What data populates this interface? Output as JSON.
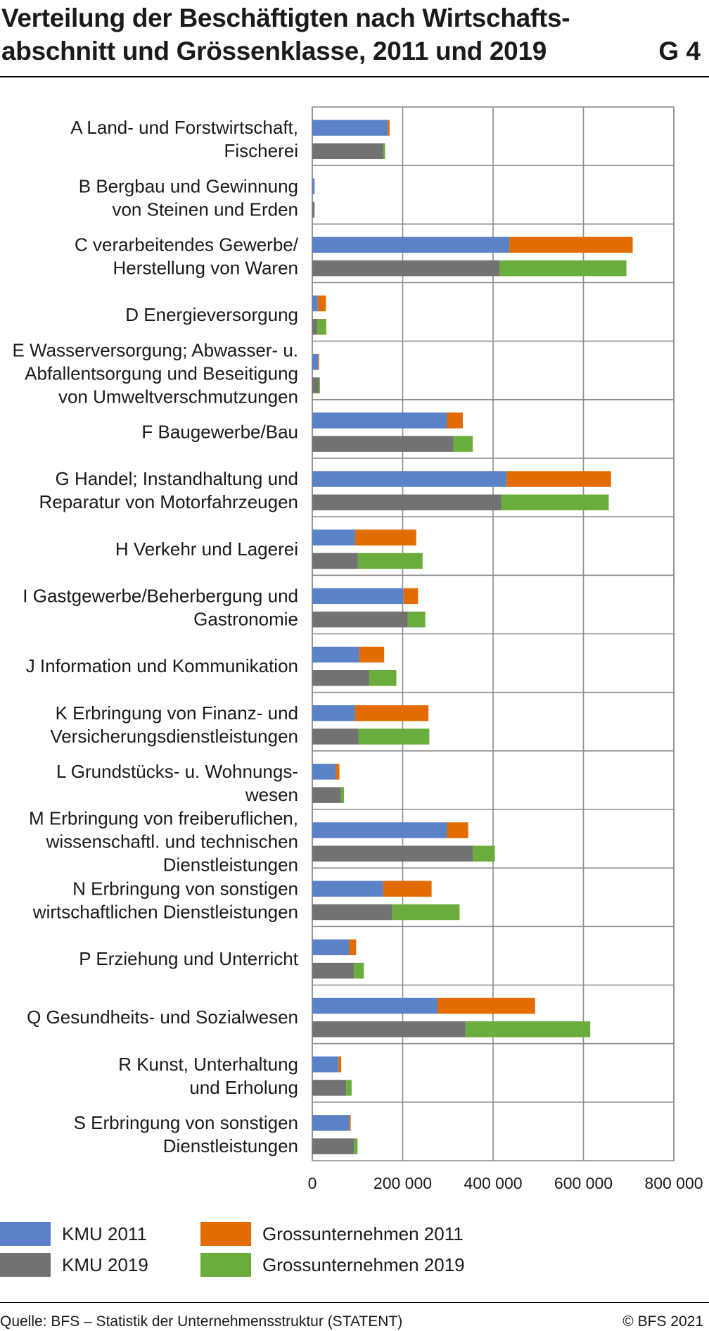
{
  "title_lines": [
    "Verteilung der Beschäftigten nach Wirtschafts-",
    "abschnitt und Grössenklasse, 2011 und 2019"
  ],
  "figure_number": "G 4",
  "colors": {
    "kmu_2011": "#5b81c6",
    "gross_2011": "#e26c00",
    "kmu_2019": "#727272",
    "gross_2019": "#6aad3c"
  },
  "legend": [
    {
      "label": "KMU 2011",
      "color": "#5b81c6"
    },
    {
      "label": "Grossunternehmen 2011",
      "color": "#e26c00"
    },
    {
      "label": "KMU 2019",
      "color": "#727272"
    },
    {
      "label": "Grossunternehmen 2019",
      "color": "#6aad3c"
    }
  ],
  "chart_data": {
    "type": "bar",
    "orientation": "horizontal",
    "stacked": true,
    "xlim": [
      0,
      800000
    ],
    "xticks": [
      0,
      200000,
      400000,
      600000,
      800000
    ],
    "xtick_labels": [
      "0",
      "200 000",
      "400 000",
      "600 000",
      "800 000"
    ],
    "grid": true,
    "legend_position": "bottom",
    "categories": [
      {
        "label_lines": [
          "A Land- und Forstwirtschaft,",
          "Fischerei"
        ],
        "kmu_2011": 167000,
        "gross_2011": 4000,
        "kmu_2019": 157000,
        "gross_2019": 4000
      },
      {
        "label_lines": [
          "B Bergbau und Gewinnung",
          "von Steinen und Erden"
        ],
        "kmu_2011": 5000,
        "gross_2011": 0,
        "kmu_2019": 5000,
        "gross_2019": 0
      },
      {
        "label_lines": [
          "C verarbeitendes Gewerbe/",
          "Herstellung von Waren"
        ],
        "kmu_2011": 436000,
        "gross_2011": 273000,
        "kmu_2019": 415000,
        "gross_2019": 280000
      },
      {
        "label_lines": [
          "D Energieversorgung"
        ],
        "kmu_2011": 12000,
        "gross_2011": 18000,
        "kmu_2019": 11000,
        "gross_2019": 20000
      },
      {
        "label_lines": [
          "E Wasserversorgung; Abwasser- u.",
          "Abfallentsorgung und Beseitigung",
          "von Umweltverschmutzungen"
        ],
        "kmu_2011": 13000,
        "gross_2011": 2000,
        "kmu_2019": 14000,
        "gross_2019": 3000
      },
      {
        "label_lines": [
          "F Baugewerbe/Bau"
        ],
        "kmu_2011": 298000,
        "gross_2011": 35000,
        "kmu_2019": 312000,
        "gross_2019": 43000
      },
      {
        "label_lines": [
          "G Handel; Instandhaltung und",
          "Reparatur von Motorfahrzeugen"
        ],
        "kmu_2011": 430000,
        "gross_2011": 231000,
        "kmu_2019": 418000,
        "gross_2019": 238000
      },
      {
        "label_lines": [
          "H Verkehr und Lagerei"
        ],
        "kmu_2011": 95000,
        "gross_2011": 135000,
        "kmu_2019": 101000,
        "gross_2019": 143000
      },
      {
        "label_lines": [
          "I Gastgewerbe/Beherbergung und",
          "Gastronomie"
        ],
        "kmu_2011": 202000,
        "gross_2011": 32000,
        "kmu_2019": 211000,
        "gross_2019": 39000
      },
      {
        "label_lines": [
          "J Information und Kommunikation"
        ],
        "kmu_2011": 104000,
        "gross_2011": 55000,
        "kmu_2019": 126000,
        "gross_2019": 60000
      },
      {
        "label_lines": [
          "K Erbringung von Finanz- und",
          "Versicherungsdienstleistungen"
        ],
        "kmu_2011": 95000,
        "gross_2011": 162000,
        "kmu_2019": 102000,
        "gross_2019": 157000
      },
      {
        "label_lines": [
          "L Grundstücks- u. Wohnungs-",
          "wesen"
        ],
        "kmu_2011": 52000,
        "gross_2011": 8000,
        "kmu_2019": 63000,
        "gross_2019": 7000
      },
      {
        "label_lines": [
          "M Erbringung von freiberuflichen,",
          "wissenschaftl. und technischen",
          "Dienstleistungen"
        ],
        "kmu_2011": 298000,
        "gross_2011": 47000,
        "kmu_2019": 356000,
        "gross_2019": 48000
      },
      {
        "label_lines": [
          "N Erbringung von sonstigen",
          "wirtschaftlichen Dienstleistungen"
        ],
        "kmu_2011": 157000,
        "gross_2011": 107000,
        "kmu_2019": 177000,
        "gross_2019": 149000
      },
      {
        "label_lines": [
          "P Erziehung und Unterricht"
        ],
        "kmu_2011": 81000,
        "gross_2011": 16000,
        "kmu_2019": 92000,
        "gross_2019": 22000
      },
      {
        "label_lines": [
          "Q Gesundheits- und Sozialwesen"
        ],
        "kmu_2011": 277000,
        "gross_2011": 216000,
        "kmu_2019": 339000,
        "gross_2019": 276000
      },
      {
        "label_lines": [
          "R Kunst, Unterhaltung",
          "und Erholung"
        ],
        "kmu_2011": 58000,
        "gross_2011": 6000,
        "kmu_2019": 75000,
        "gross_2019": 12000
      },
      {
        "label_lines": [
          "S Erbringung von sonstigen",
          "Dienstleistungen"
        ],
        "kmu_2011": 82000,
        "gross_2011": 3000,
        "kmu_2019": 92000,
        "gross_2019": 8000
      }
    ]
  },
  "footer": {
    "source": "Quelle: BFS – Statistik der Unternehmensstruktur (STATENT)",
    "copyright": "© BFS 2021"
  }
}
